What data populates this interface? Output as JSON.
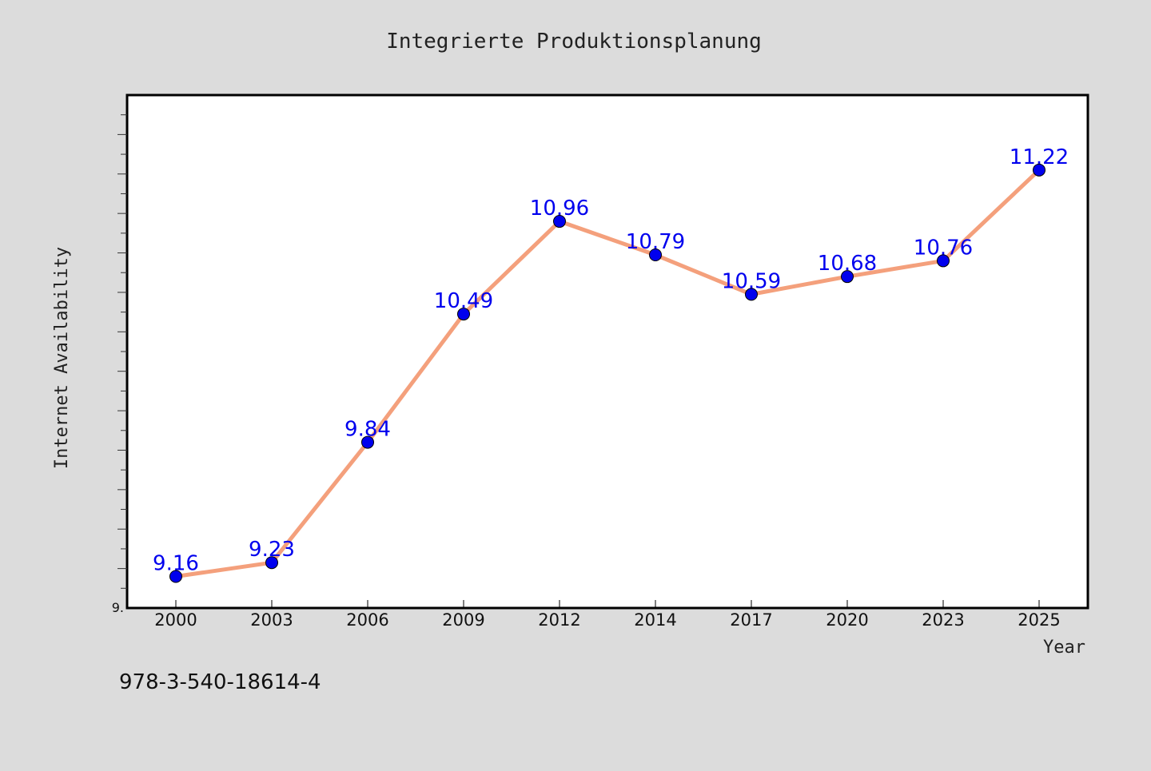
{
  "chart_data": {
    "type": "line",
    "title": "Integrierte Produktionsplanung",
    "xlabel": "Year",
    "ylabel": "Internet Availability",
    "categories": [
      "2000",
      "2003",
      "2006",
      "2009",
      "2012",
      "2014",
      "2017",
      "2020",
      "2023",
      "2025"
    ],
    "series": [
      {
        "values": [
          9.16,
          9.23,
          9.84,
          10.49,
          10.96,
          10.79,
          10.59,
          10.68,
          10.76,
          11.22
        ],
        "data_labels": [
          "9.16",
          "9.23",
          "9.84",
          "10.49",
          "10.96",
          "10.79",
          "10.59",
          "10.68",
          "10.76",
          "11.22"
        ]
      }
    ],
    "ylim": [
      9.0,
      11.6
    ],
    "y_tick_labels": [
      "9."
    ],
    "grid": false,
    "legend": "none",
    "colors": {
      "line": "#f4a07c",
      "marker": "#0000ee",
      "data_label": "#0000ee",
      "plot_background": "#ffffff",
      "figure_background": "#dcdcdc"
    }
  },
  "footnote": "978-3-540-18614-4"
}
